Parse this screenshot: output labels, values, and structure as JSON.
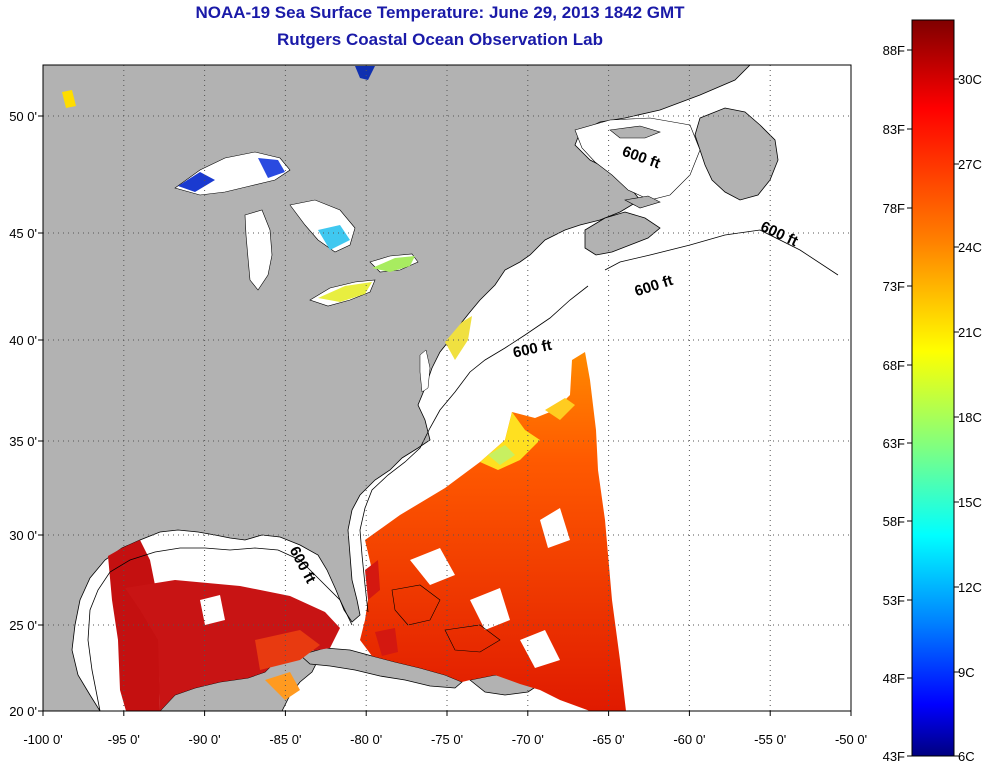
{
  "title": {
    "line1": "NOAA-19 Sea Surface Temperature:  June 29, 2013 1842 GMT",
    "line2": "Rutgers Coastal Ocean Observation Lab"
  },
  "map": {
    "lon_ticks": [
      "-100 0'",
      "-95 0'",
      "-90 0'",
      "-85 0'",
      "-80 0'",
      "-75 0'",
      "-70 0'",
      "-65 0'",
      "-60 0'",
      "-55 0'",
      "-50 0'"
    ],
    "lat_ticks": [
      "50 0'",
      "45 0'",
      "40 0'",
      "35 0'",
      "30 0'",
      "25 0'",
      "20 0'"
    ],
    "contour_label": "600 ft",
    "colors": {
      "land": "#b2b2b2",
      "ocean": "#ffffff",
      "coast": "#000000",
      "grid": "#555555"
    }
  },
  "colorbar": {
    "f_labels": [
      "88F",
      "83F",
      "78F",
      "73F",
      "68F",
      "63F",
      "58F",
      "53F",
      "48F",
      "43F"
    ],
    "c_labels": [
      "30C",
      "27C",
      "24C",
      "21C",
      "18C",
      "15C",
      "12C",
      "9C",
      "6C"
    ],
    "colors": [
      "#7f0000",
      "#ff0000",
      "#ff8000",
      "#ffff00",
      "#80ff80",
      "#00ffff",
      "#0080ff",
      "#0000ff",
      "#00007f"
    ]
  }
}
